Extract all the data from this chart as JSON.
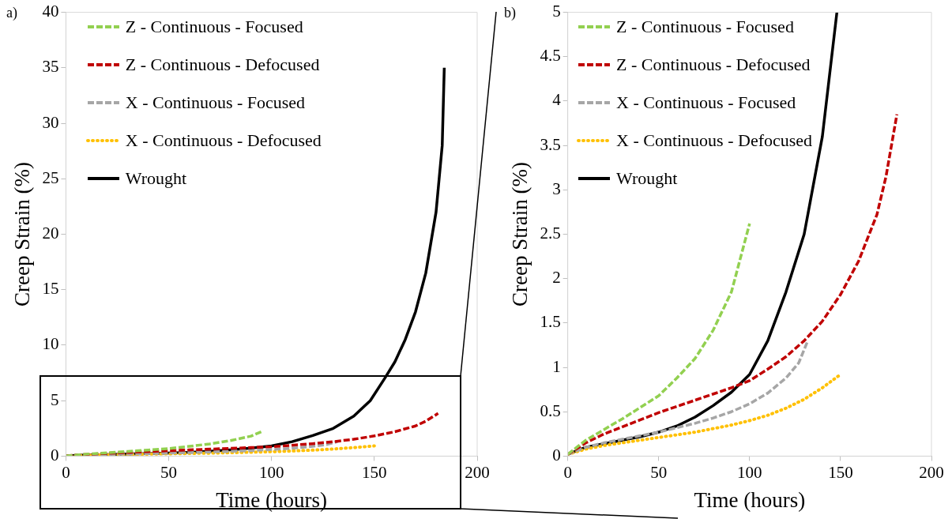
{
  "chart_data": [
    {
      "type": "line",
      "annotations": [
        "a)"
      ],
      "xlabel": "Time (hours)",
      "ylabel": "Creep Strain (%)",
      "xlim": [
        0,
        200
      ],
      "xticks": [
        0,
        50,
        100,
        150,
        200
      ],
      "ylim": [
        0,
        40
      ],
      "yticks": [
        0,
        5,
        10,
        15,
        20,
        25,
        30,
        35,
        40
      ],
      "grid": false,
      "legend": "top left",
      "series": [
        {
          "name": "Z - Continuous - Focused",
          "color": "#92d050",
          "line_style": "dashed",
          "x": [
            0,
            10,
            20,
            30,
            40,
            50,
            60,
            70,
            80,
            90,
            95
          ],
          "values": [
            0.02,
            0.18,
            0.3,
            0.42,
            0.55,
            0.68,
            0.88,
            1.1,
            1.4,
            1.8,
            2.2
          ]
        },
        {
          "name": "Z - Continuous - Defocused",
          "color": "#c00000",
          "line_style": "dashed",
          "x": [
            0,
            10,
            20,
            30,
            40,
            50,
            60,
            70,
            80,
            90,
            100,
            110,
            120,
            130,
            140,
            150,
            160,
            170,
            175,
            181
          ],
          "values": [
            0.02,
            0.15,
            0.25,
            0.33,
            0.41,
            0.49,
            0.56,
            0.63,
            0.7,
            0.77,
            0.85,
            0.98,
            1.12,
            1.3,
            1.52,
            1.82,
            2.2,
            2.72,
            3.15,
            3.85
          ]
        },
        {
          "name": "X - Continuous - Focused",
          "color": "#a6a6a6",
          "line_style": "dashed",
          "x": [
            0,
            10,
            20,
            30,
            40,
            50,
            60,
            70,
            80,
            90,
            100,
            110,
            120,
            127,
            132
          ],
          "values": [
            0.02,
            0.1,
            0.15,
            0.19,
            0.23,
            0.27,
            0.32,
            0.37,
            0.43,
            0.5,
            0.59,
            0.71,
            0.88,
            1.05,
            1.3
          ]
        },
        {
          "name": "X - Continuous - Defocused",
          "color": "#ffc000",
          "line_style": "dotted",
          "x": [
            0,
            10,
            20,
            30,
            40,
            50,
            60,
            70,
            80,
            90,
            100,
            110,
            120,
            130,
            140,
            150
          ],
          "values": [
            0.02,
            0.08,
            0.12,
            0.15,
            0.18,
            0.21,
            0.24,
            0.27,
            0.31,
            0.35,
            0.4,
            0.46,
            0.54,
            0.64,
            0.77,
            0.92
          ]
        },
        {
          "name": "Wrought",
          "color": "#000000",
          "line_style": "solid",
          "x": [
            0,
            10,
            20,
            30,
            40,
            50,
            60,
            70,
            80,
            90,
            100,
            110,
            120,
            130,
            140,
            148,
            155,
            160,
            165,
            170,
            175,
            180,
            183,
            184
          ],
          "values": [
            0.02,
            0.1,
            0.14,
            0.18,
            0.22,
            0.27,
            0.34,
            0.44,
            0.57,
            0.72,
            0.92,
            1.3,
            1.85,
            2.5,
            3.6,
            5,
            7,
            8.5,
            10.5,
            13,
            16.5,
            22,
            28,
            35
          ]
        }
      ]
    },
    {
      "type": "line",
      "annotations": [
        "b)"
      ],
      "xlabel": "Time (hours)",
      "ylabel": "Creep Strain (%)",
      "xlim": [
        0,
        200
      ],
      "xticks": [
        0,
        50,
        100,
        150,
        200
      ],
      "ylim": [
        0,
        5
      ],
      "yticks": [
        0,
        0.5,
        1,
        1.5,
        2,
        2.5,
        3,
        3.5,
        4,
        4.5,
        5
      ],
      "grid": false,
      "legend": "top left",
      "series": [
        {
          "name": "Z - Continuous - Focused",
          "color": "#92d050",
          "line_style": "dashed",
          "x": [
            0,
            10,
            20,
            30,
            40,
            50,
            60,
            70,
            80,
            90,
            100
          ],
          "values": [
            0.02,
            0.18,
            0.3,
            0.42,
            0.55,
            0.68,
            0.88,
            1.1,
            1.42,
            1.85,
            2.62
          ]
        },
        {
          "name": "Z - Continuous - Defocused",
          "color": "#c00000",
          "line_style": "dashed",
          "x": [
            0,
            10,
            20,
            30,
            40,
            50,
            60,
            70,
            80,
            90,
            100,
            110,
            120,
            130,
            140,
            150,
            160,
            170,
            175,
            181
          ],
          "values": [
            0.02,
            0.15,
            0.25,
            0.33,
            0.41,
            0.49,
            0.56,
            0.63,
            0.7,
            0.77,
            0.85,
            0.98,
            1.12,
            1.3,
            1.52,
            1.82,
            2.2,
            2.72,
            3.15,
            3.85
          ]
        },
        {
          "name": "X - Continuous - Focused",
          "color": "#a6a6a6",
          "line_style": "dashed",
          "x": [
            0,
            10,
            20,
            30,
            40,
            50,
            60,
            70,
            80,
            90,
            100,
            110,
            120,
            127,
            132
          ],
          "values": [
            0.02,
            0.1,
            0.15,
            0.19,
            0.23,
            0.27,
            0.32,
            0.37,
            0.43,
            0.5,
            0.59,
            0.71,
            0.88,
            1.05,
            1.3
          ]
        },
        {
          "name": "X - Continuous - Defocused",
          "color": "#ffc000",
          "line_style": "dotted",
          "x": [
            0,
            10,
            20,
            30,
            40,
            50,
            60,
            70,
            80,
            90,
            100,
            110,
            120,
            130,
            140,
            150
          ],
          "values": [
            0.02,
            0.08,
            0.12,
            0.15,
            0.18,
            0.21,
            0.24,
            0.27,
            0.31,
            0.35,
            0.4,
            0.46,
            0.54,
            0.64,
            0.77,
            0.92
          ]
        },
        {
          "name": "Wrought",
          "color": "#000000",
          "line_style": "solid",
          "x": [
            0,
            10,
            20,
            30,
            40,
            50,
            60,
            70,
            80,
            90,
            100,
            110,
            120,
            130,
            140,
            148
          ],
          "values": [
            0.02,
            0.1,
            0.14,
            0.18,
            0.22,
            0.27,
            0.34,
            0.44,
            0.57,
            0.72,
            0.92,
            1.3,
            1.85,
            2.5,
            3.6,
            5
          ]
        }
      ]
    }
  ]
}
